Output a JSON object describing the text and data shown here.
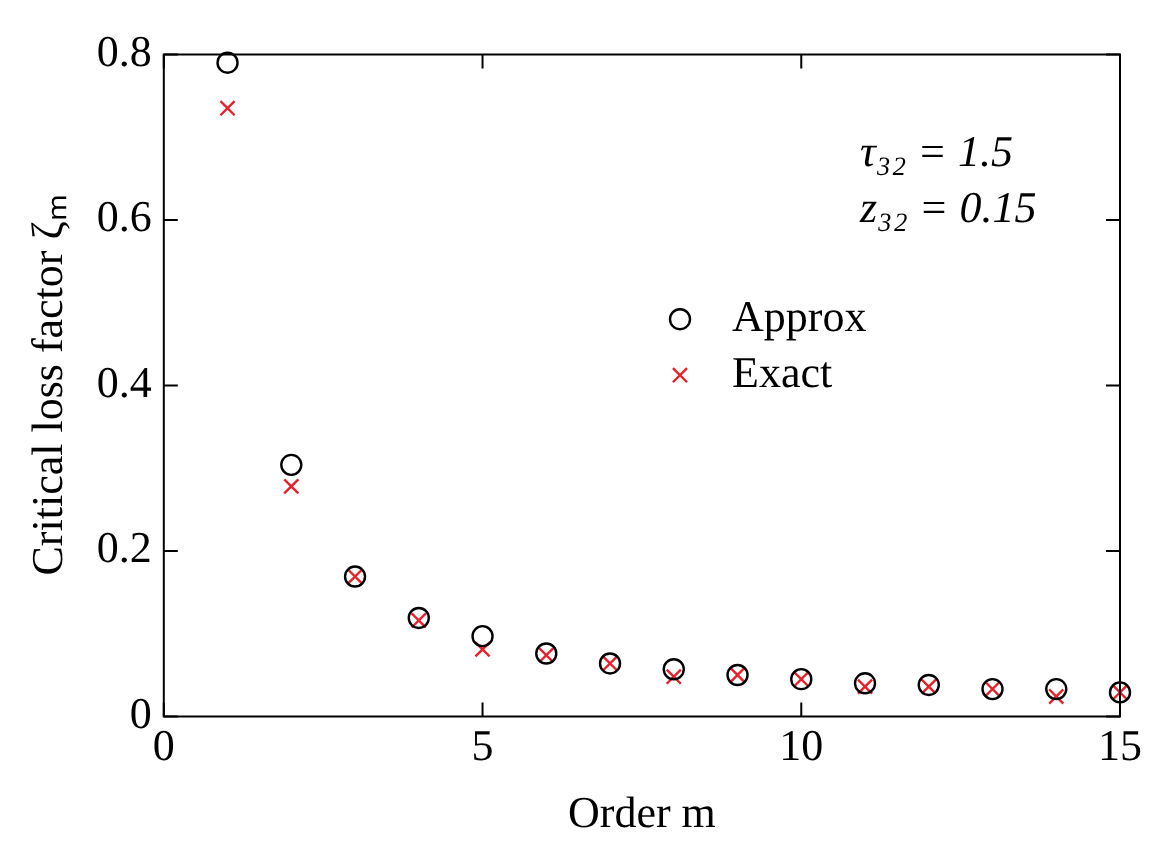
{
  "chart_data": {
    "type": "scatter",
    "xlabel": "Order m",
    "ylabel": "Critical loss factor ζₘ",
    "annotations": [
      "τ₃₂ = 1.5",
      "z₃₂ = 0.15"
    ],
    "xlim": [
      0,
      15
    ],
    "xticks": [
      0,
      5,
      10,
      15
    ],
    "ylim": [
      0,
      0.8
    ],
    "yticks": [
      0,
      0.2,
      0.4,
      0.6,
      0.8
    ],
    "grid": false,
    "legend": "right",
    "x": [
      1,
      2,
      3,
      4,
      5,
      6,
      7,
      8,
      9,
      10,
      11,
      12,
      13,
      14,
      15
    ],
    "series": [
      {
        "name": "Approx",
        "color": "#000000",
        "marker": "circle",
        "values": [
          0.79,
          0.304,
          0.169,
          0.119,
          0.097,
          0.076,
          0.064,
          0.057,
          0.05,
          0.045,
          0.04,
          0.038,
          0.033,
          0.033,
          0.029
        ]
      },
      {
        "name": "Exact",
        "color": "#e8202a",
        "marker": "cross",
        "values": [
          0.735,
          0.278,
          0.169,
          0.116,
          0.081,
          0.074,
          0.064,
          0.048,
          0.05,
          0.045,
          0.036,
          0.036,
          0.033,
          0.024,
          0.029
        ]
      }
    ]
  }
}
